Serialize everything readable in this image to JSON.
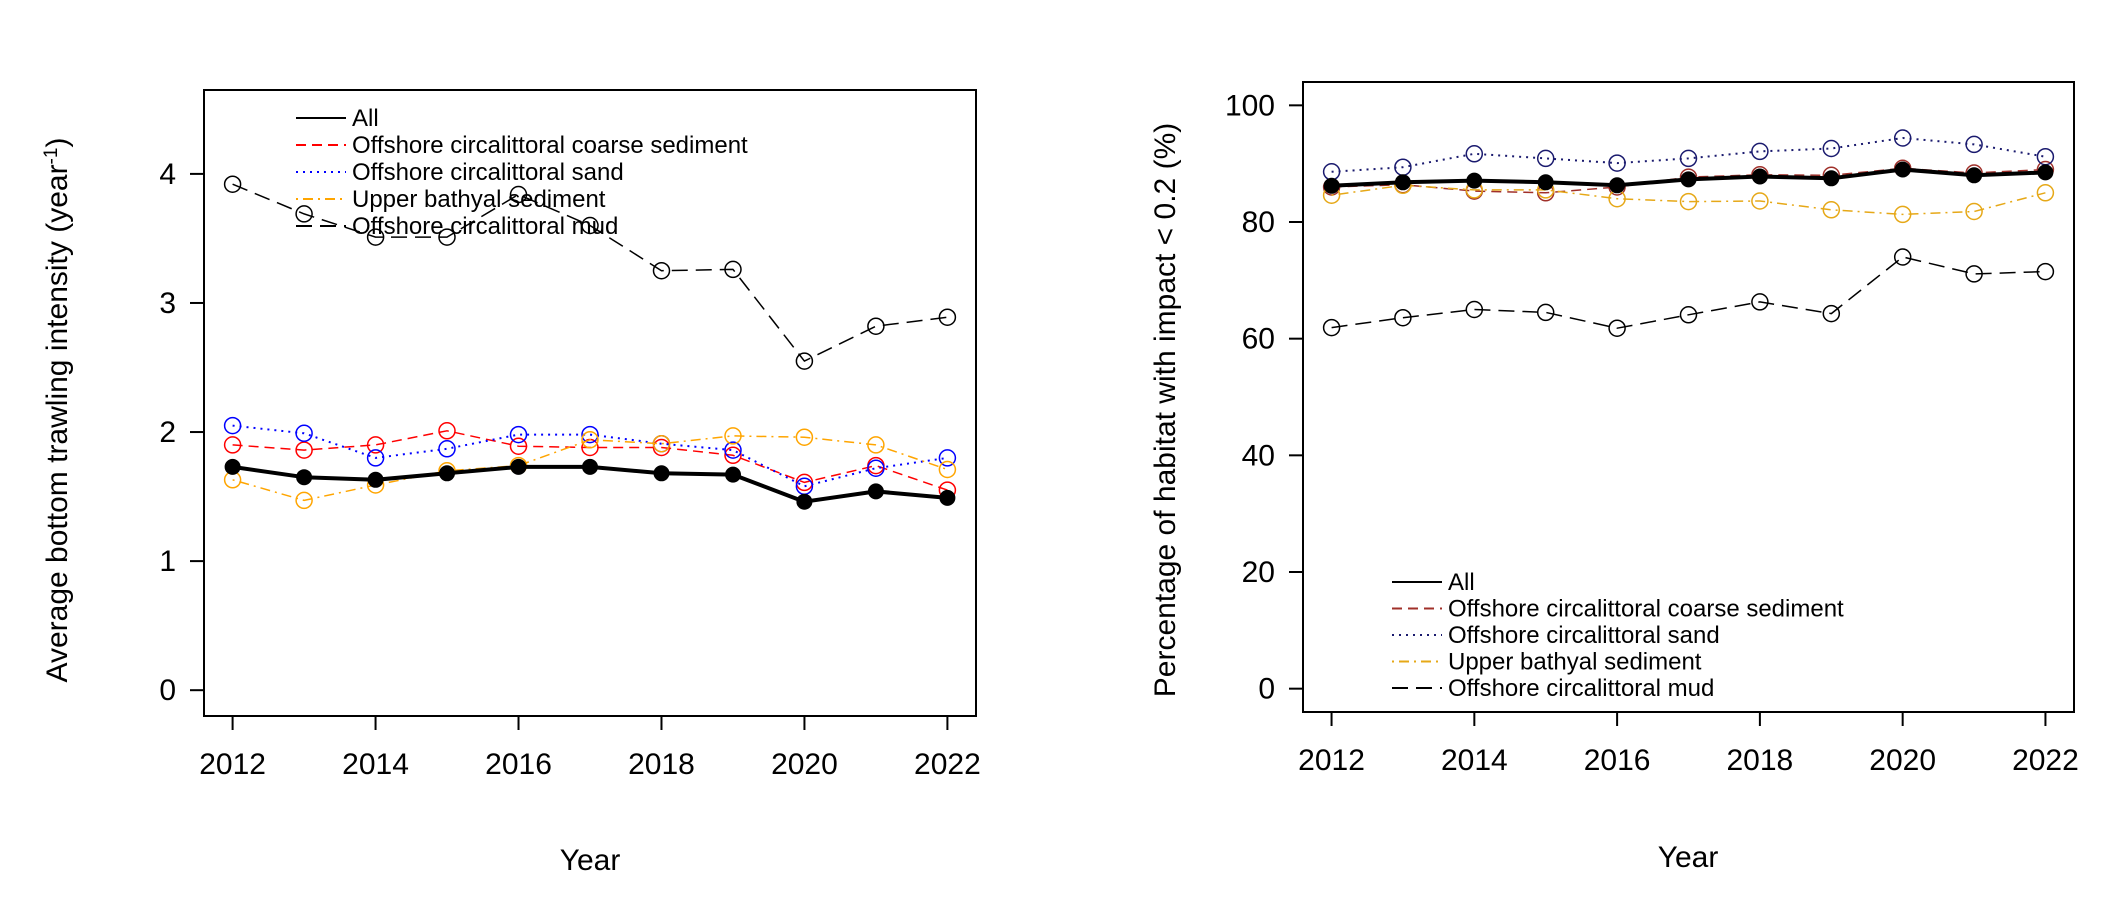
{
  "chart_data": [
    {
      "type": "line",
      "ylabel_main": "Average bottom trawling intensity (year",
      "ylabel_sup": "-1",
      "ylabel_end": ")",
      "xlabel": "Year",
      "xlim": [
        2011.6,
        2022.4
      ],
      "ylim": [
        -0.2,
        4.65
      ],
      "x_ticks": [
        2012,
        2014,
        2016,
        2018,
        2020,
        2022
      ],
      "y_ticks": [
        0,
        1,
        2,
        3,
        4
      ],
      "legend_position": "top",
      "x": [
        2012,
        2013,
        2014,
        2015,
        2016,
        2017,
        2018,
        2019,
        2020,
        2021,
        2022
      ],
      "series": [
        {
          "name": "All",
          "color": "#000000",
          "dash": "solid",
          "width": 4,
          "marker": "filled",
          "values": [
            1.73,
            1.65,
            1.63,
            1.68,
            1.73,
            1.73,
            1.68,
            1.67,
            1.46,
            1.54,
            1.49
          ]
        },
        {
          "name": "Offshore circalittoral coarse sediment",
          "color": "#ff0000",
          "dash": "dashed",
          "width": 1.5,
          "marker": "open",
          "values": [
            1.9,
            1.86,
            1.9,
            2.01,
            1.89,
            1.88,
            1.88,
            1.82,
            1.61,
            1.74,
            1.55
          ]
        },
        {
          "name": "Offshore circalittoral sand",
          "color": "#0000ff",
          "dash": "dotted",
          "width": 2,
          "marker": "open",
          "values": [
            2.05,
            1.99,
            1.8,
            1.87,
            1.98,
            1.98,
            1.91,
            1.86,
            1.58,
            1.72,
            1.8
          ]
        },
        {
          "name": "Upper bathyal sediment",
          "color": "#ffa500",
          "dash": "dotdash",
          "width": 1.5,
          "marker": "open",
          "values": [
            1.63,
            1.47,
            1.59,
            1.7,
            1.74,
            1.94,
            1.91,
            1.97,
            1.96,
            1.9,
            1.71
          ]
        },
        {
          "name": "Offshore circalittoral mud",
          "color": "#000000",
          "dash": "longdash",
          "width": 1.5,
          "marker": "open",
          "values": [
            3.92,
            3.69,
            3.51,
            3.51,
            3.84,
            3.6,
            3.25,
            3.26,
            2.55,
            2.82,
            2.89
          ]
        }
      ]
    },
    {
      "type": "line",
      "ylabel": "Percentage of habitat with impact < 0.2 (%)",
      "xlabel": "Year",
      "xlim": [
        2011.6,
        2022.4
      ],
      "ylim": [
        -4,
        104
      ],
      "x_ticks": [
        2012,
        2014,
        2016,
        2018,
        2020,
        2022
      ],
      "y_ticks": [
        0,
        20,
        40,
        60,
        80,
        100
      ],
      "legend_position": "bottom",
      "x": [
        2012,
        2013,
        2014,
        2015,
        2016,
        2017,
        2018,
        2019,
        2020,
        2021,
        2022
      ],
      "series": [
        {
          "name": "All",
          "color": "#000000",
          "dash": "solid",
          "width": 4,
          "marker": "filled",
          "values": [
            86.2,
            86.8,
            87.1,
            86.8,
            86.3,
            87.3,
            87.8,
            87.5,
            89.0,
            88.0,
            88.5
          ]
        },
        {
          "name": "Offshore circalittoral coarse sediment",
          "color": "#a0302a",
          "dash": "dashed",
          "width": 1.5,
          "marker": "open",
          "values": [
            86.0,
            86.4,
            85.3,
            85.0,
            86.0,
            87.7,
            88.1,
            88.0,
            89.2,
            88.4,
            89.0
          ]
        },
        {
          "name": "Offshore circalittoral sand",
          "color": "#1a1a6e",
          "dash": "dotted",
          "width": 2,
          "marker": "open",
          "values": [
            88.6,
            89.4,
            91.7,
            90.9,
            90.1,
            90.9,
            92.1,
            92.6,
            94.4,
            93.3,
            91.2
          ]
        },
        {
          "name": "Upper bathyal sediment",
          "color": "#e6a817",
          "dash": "dotdash",
          "width": 1.5,
          "marker": "open",
          "values": [
            84.6,
            86.3,
            85.5,
            85.5,
            84.0,
            83.5,
            83.6,
            82.1,
            81.3,
            81.8,
            85.0
          ]
        },
        {
          "name": "Offshore circalittoral mud",
          "color": "#000000",
          "dash": "longdash",
          "width": 1.5,
          "marker": "open",
          "values": [
            61.9,
            63.6,
            65.0,
            64.5,
            61.8,
            64.1,
            66.3,
            64.3,
            74.0,
            71.1,
            71.5
          ]
        }
      ]
    }
  ]
}
